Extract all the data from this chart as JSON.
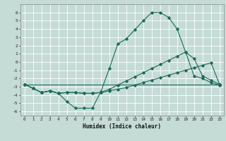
{
  "xlabel": "Humidex (Indice chaleur)",
  "bg_color": "#c5dbd6",
  "grid_color": "#ffffff",
  "line_color": "#1a6b5a",
  "xlim": [
    -0.5,
    23.5
  ],
  "ylim": [
    -6.5,
    7.0
  ],
  "xticks": [
    0,
    1,
    2,
    3,
    4,
    5,
    6,
    7,
    8,
    9,
    10,
    11,
    12,
    13,
    14,
    15,
    16,
    17,
    18,
    19,
    20,
    21,
    22,
    23
  ],
  "yticks": [
    -6,
    -5,
    -4,
    -3,
    -2,
    -1,
    0,
    1,
    2,
    3,
    4,
    5,
    6
  ],
  "line1_x": [
    0,
    1,
    2,
    3,
    4,
    5,
    6,
    7,
    8,
    9,
    10,
    11,
    12,
    13,
    14,
    15,
    16,
    17,
    18,
    19,
    20,
    21,
    22,
    23
  ],
  "line1_y": [
    -2.7,
    -3.2,
    -3.7,
    -3.5,
    -3.8,
    -4.8,
    -5.6,
    -5.6,
    -5.6,
    -3.6,
    -0.8,
    2.2,
    2.8,
    3.9,
    5.0,
    6.0,
    6.0,
    5.4,
    4.0,
    1.2,
    -1.7,
    -2.0,
    -2.5,
    -2.8
  ],
  "line2_x": [
    0,
    1,
    2,
    3,
    4,
    5,
    6,
    7,
    8,
    9,
    10,
    11,
    12,
    13,
    14,
    15,
    16,
    17,
    18,
    19,
    20,
    21,
    22,
    23
  ],
  "line2_y": [
    -2.7,
    -3.2,
    -3.7,
    -3.5,
    -3.8,
    -3.7,
    -3.7,
    -3.8,
    -3.8,
    -3.7,
    -3.5,
    -3.3,
    -3.1,
    -2.8,
    -2.5,
    -2.2,
    -1.9,
    -1.6,
    -1.3,
    -1.0,
    -0.7,
    -0.4,
    -0.1,
    -2.7
  ],
  "line3_x": [
    0,
    1,
    2,
    3,
    4,
    5,
    6,
    7,
    8,
    9,
    10,
    11,
    12,
    13,
    14,
    15,
    16,
    17,
    18,
    19,
    20,
    21,
    22,
    23
  ],
  "line3_y": [
    -2.7,
    -3.2,
    -3.7,
    -3.5,
    -3.8,
    -3.7,
    -3.7,
    -3.8,
    -3.8,
    -3.7,
    -3.3,
    -2.8,
    -2.3,
    -1.8,
    -1.3,
    -0.8,
    -0.3,
    0.2,
    0.7,
    1.2,
    0.4,
    -1.7,
    -2.2,
    -2.7
  ],
  "line4_x": [
    0,
    23
  ],
  "line4_y": [
    -2.7,
    -2.7
  ]
}
